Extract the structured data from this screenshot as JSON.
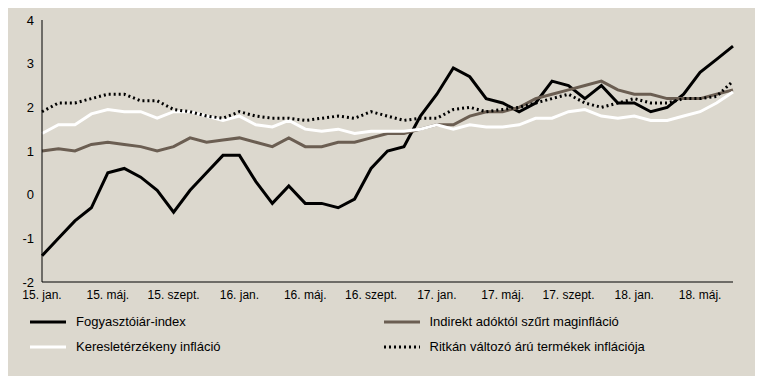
{
  "chart_data": {
    "type": "line",
    "categories": [
      "15. jan.",
      null,
      null,
      null,
      "15. máj.",
      null,
      null,
      null,
      "15. szept.",
      null,
      null,
      null,
      "16. jan.",
      null,
      null,
      null,
      "16. máj.",
      null,
      null,
      null,
      "16. szept.",
      null,
      null,
      null,
      "17. jan.",
      null,
      null,
      null,
      "17. máj.",
      null,
      null,
      null,
      "17. szept.",
      null,
      null,
      null,
      "18. jan.",
      null,
      null,
      null,
      "18. máj.",
      null,
      null
    ],
    "series": [
      {
        "name": "Fogyasztóiár-index",
        "color": "#000000",
        "line_style": "solid",
        "values": [
          -1.4,
          -1.0,
          -0.6,
          -0.3,
          0.5,
          0.6,
          0.4,
          0.1,
          -0.4,
          0.1,
          0.5,
          0.9,
          0.9,
          0.3,
          -0.2,
          0.2,
          -0.2,
          -0.2,
          -0.3,
          -0.1,
          0.6,
          1.0,
          1.1,
          1.8,
          2.3,
          2.9,
          2.7,
          2.2,
          2.1,
          1.9,
          2.1,
          2.6,
          2.5,
          2.2,
          2.5,
          2.1,
          2.1,
          1.9,
          2.0,
          2.3,
          2.8,
          3.1,
          3.4
        ]
      },
      {
        "name": "Indirekt adóktól szűrt maginfláció",
        "color": "#6b5e52",
        "line_style": "solid",
        "values": [
          1.0,
          1.05,
          1.0,
          1.15,
          1.2,
          1.15,
          1.1,
          1.0,
          1.1,
          1.3,
          1.2,
          1.25,
          1.3,
          1.2,
          1.1,
          1.3,
          1.1,
          1.1,
          1.2,
          1.2,
          1.3,
          1.4,
          1.4,
          1.5,
          1.6,
          1.6,
          1.8,
          1.9,
          1.9,
          2.0,
          2.2,
          2.3,
          2.4,
          2.5,
          2.6,
          2.4,
          2.3,
          2.3,
          2.2,
          2.2,
          2.2,
          2.3,
          2.4
        ]
      },
      {
        "name": "Keresletérzékeny infláció",
        "color": "#ffffff",
        "line_style": "solid",
        "values": [
          1.4,
          1.6,
          1.6,
          1.85,
          1.95,
          1.9,
          1.9,
          1.75,
          1.9,
          1.9,
          1.8,
          1.7,
          1.8,
          1.6,
          1.55,
          1.7,
          1.5,
          1.45,
          1.5,
          1.4,
          1.45,
          1.45,
          1.45,
          1.5,
          1.6,
          1.5,
          1.6,
          1.55,
          1.55,
          1.6,
          1.75,
          1.75,
          1.9,
          1.95,
          1.8,
          1.75,
          1.8,
          1.7,
          1.7,
          1.8,
          1.9,
          2.1,
          2.35
        ]
      },
      {
        "name": "Ritkán változó árú termékek inflációja",
        "color": "#000000",
        "line_style": "dotted",
        "values": [
          1.9,
          2.1,
          2.1,
          2.2,
          2.3,
          2.3,
          2.15,
          2.15,
          1.95,
          1.9,
          1.8,
          1.75,
          1.9,
          1.8,
          1.75,
          1.75,
          1.7,
          1.75,
          1.8,
          1.75,
          1.9,
          1.8,
          1.7,
          1.75,
          1.75,
          1.95,
          2.0,
          1.9,
          1.95,
          2.0,
          2.1,
          2.2,
          2.3,
          2.1,
          2.0,
          2.1,
          2.2,
          2.1,
          2.1,
          2.2,
          2.2,
          2.25,
          2.6
        ]
      }
    ],
    "ylim": [
      -2,
      4
    ],
    "yticks": [
      -2,
      -1,
      0,
      1,
      2,
      3,
      4
    ],
    "grid": false,
    "legend": "bottom"
  }
}
